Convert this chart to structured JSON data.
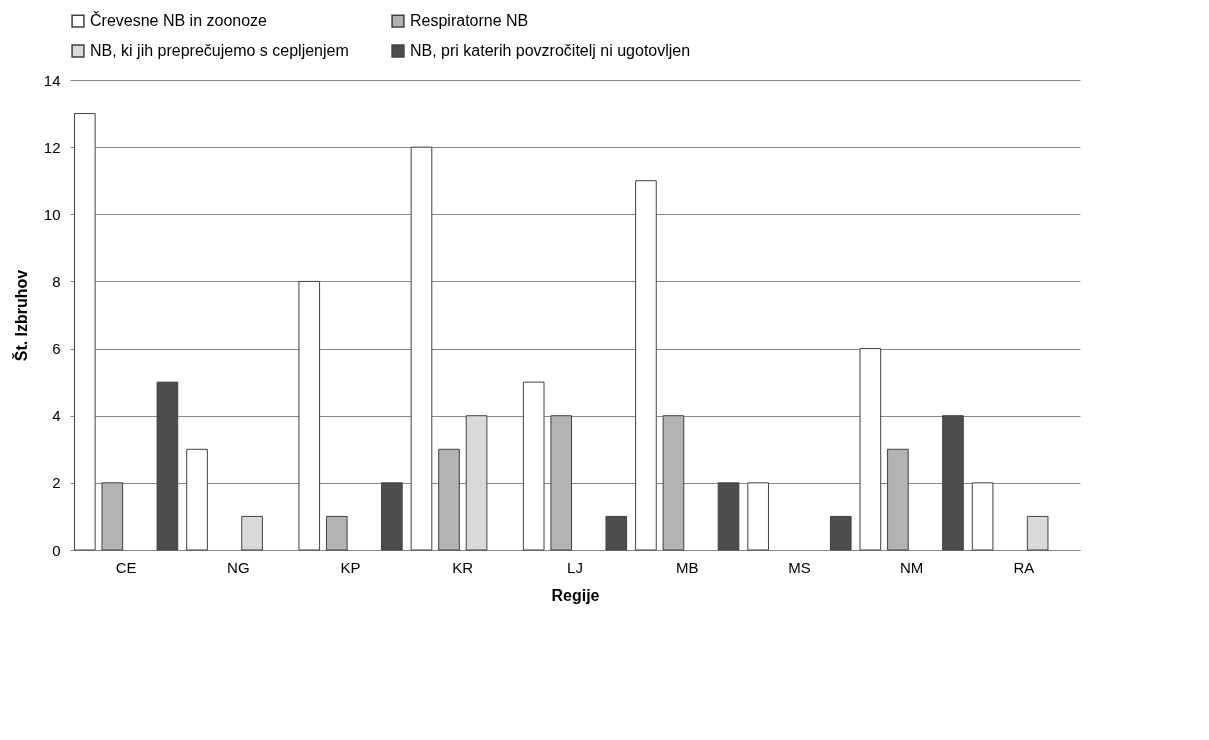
{
  "chart_data": {
    "type": "bar",
    "xlabel": "Regije",
    "ylabel": "Št. Izbruhov",
    "categories": [
      "CE",
      "NG",
      "KP",
      "KR",
      "LJ",
      "MB",
      "MS",
      "NM",
      "RA"
    ],
    "series": [
      {
        "name": "Črevesne NB in zoonoze",
        "color": "#ffffff",
        "values": [
          13,
          3,
          8,
          12,
          5,
          11,
          2,
          6,
          2
        ]
      },
      {
        "name": "Respiratorne NB",
        "color": "#b3b3b3",
        "values": [
          2,
          0,
          1,
          3,
          4,
          4,
          0,
          3,
          0
        ]
      },
      {
        "name": "NB, ki jih preprečujemo s cepljenjem",
        "color": "#d9d9d9",
        "values": [
          0,
          1,
          0,
          4,
          0,
          0,
          0,
          0,
          1
        ]
      },
      {
        "name": "NB, pri katerih povzročitelj ni ugotovljen",
        "color": "#4d4d4d",
        "values": [
          5,
          0,
          2,
          0,
          1,
          2,
          1,
          4,
          0
        ]
      }
    ],
    "ylim": [
      0,
      14
    ],
    "yticks": [
      0,
      2,
      4,
      6,
      8,
      10,
      12,
      14
    ],
    "grid": "y",
    "legend": "top"
  }
}
